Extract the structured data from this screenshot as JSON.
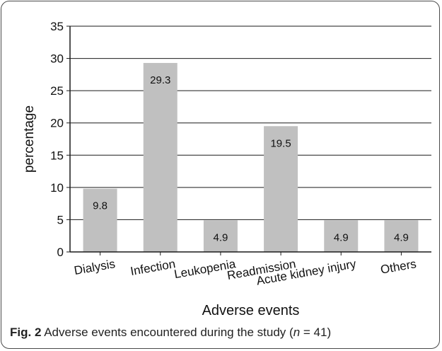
{
  "chart_data": {
    "type": "bar",
    "categories": [
      "Dialysis",
      "Infection",
      "Leukopenia",
      "Readmission",
      "Acute kidney injury",
      "Others"
    ],
    "values": [
      9.8,
      29.3,
      4.9,
      19.5,
      4.9,
      4.9
    ],
    "data_labels": [
      "9.8",
      "29.3",
      "4.9",
      "19.5",
      "4.9",
      "4.9"
    ],
    "xlabel": "Adverse events",
    "ylabel": "percentage",
    "ylim": [
      0,
      35
    ],
    "yticks": [
      0,
      5,
      10,
      15,
      20,
      25,
      30,
      35
    ],
    "grid": true,
    "bar_color": "#c0c0c0"
  },
  "caption": {
    "label": "Fig. 2",
    "text_before": "Adverse events encountered during the study (",
    "n_symbol": "n",
    "text_after": " = 41)"
  }
}
